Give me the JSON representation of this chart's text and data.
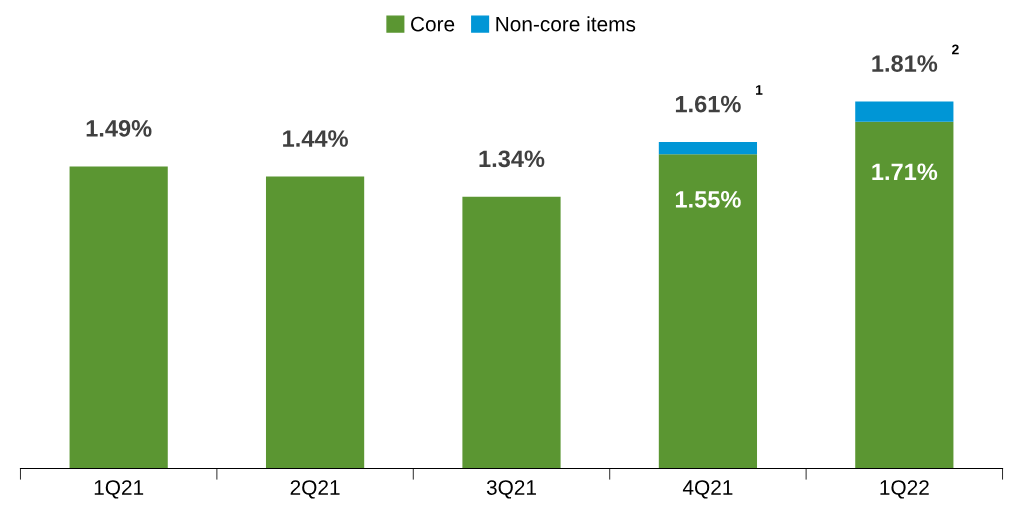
{
  "chart_data": {
    "type": "bar",
    "stacked": true,
    "categories": [
      "1Q21",
      "2Q21",
      "3Q21",
      "4Q21",
      "1Q22"
    ],
    "series": [
      {
        "name": "Core",
        "color": "#5b9632",
        "values": [
          1.49,
          1.44,
          1.34,
          1.55,
          1.71
        ],
        "value_labels": [
          "1.49%",
          "1.44%",
          "1.34%",
          "1.55%",
          "1.71%"
        ]
      },
      {
        "name": "Non-core items",
        "color": "#0096d6",
        "values": [
          null,
          null,
          null,
          0.06,
          0.1
        ]
      }
    ],
    "totals": [
      null,
      null,
      null,
      "1.61%",
      "1.81%"
    ],
    "annotations": [
      "1",
      "2"
    ],
    "legend": "top",
    "grid": false
  }
}
